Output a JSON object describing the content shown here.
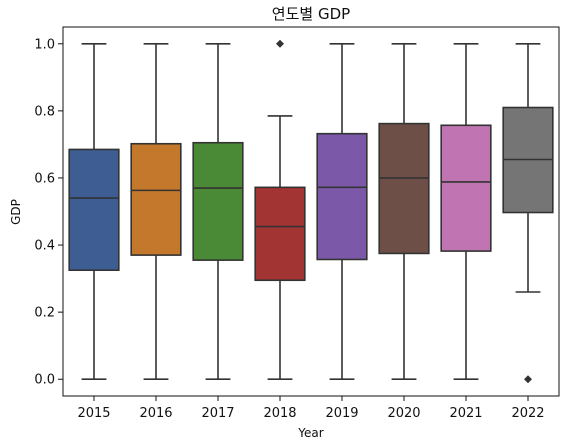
{
  "chart_data": {
    "type": "box",
    "title": "연도별 GDP",
    "xlabel": "Year",
    "ylabel": "GDP",
    "ylim": [
      -0.05,
      1.05
    ],
    "yticks": [
      "0.0",
      "0.2",
      "0.4",
      "0.6",
      "0.8",
      "1.0"
    ],
    "categories": [
      "2015",
      "2016",
      "2017",
      "2018",
      "2019",
      "2020",
      "2021",
      "2022"
    ],
    "colors": [
      "#3e5d92",
      "#c4782c",
      "#4a8a36",
      "#a23434",
      "#7b59a8",
      "#6e4f48",
      "#c074b2",
      "#757575"
    ],
    "boxes": [
      {
        "year": "2015",
        "whislo": 0.0,
        "q1": 0.325,
        "med": 0.54,
        "q3": 0.685,
        "whishi": 1.0,
        "fliers": []
      },
      {
        "year": "2016",
        "whislo": 0.0,
        "q1": 0.37,
        "med": 0.563,
        "q3": 0.702,
        "whishi": 1.0,
        "fliers": []
      },
      {
        "year": "2017",
        "whislo": 0.0,
        "q1": 0.355,
        "med": 0.57,
        "q3": 0.705,
        "whishi": 1.0,
        "fliers": []
      },
      {
        "year": "2018",
        "whislo": 0.0,
        "q1": 0.295,
        "med": 0.455,
        "q3": 0.572,
        "whishi": 0.785,
        "fliers": [
          1.0
        ]
      },
      {
        "year": "2019",
        "whislo": 0.0,
        "q1": 0.357,
        "med": 0.572,
        "q3": 0.732,
        "whishi": 1.0,
        "fliers": []
      },
      {
        "year": "2020",
        "whislo": 0.0,
        "q1": 0.375,
        "med": 0.6,
        "q3": 0.762,
        "whishi": 1.0,
        "fliers": []
      },
      {
        "year": "2021",
        "whislo": 0.0,
        "q1": 0.382,
        "med": 0.588,
        "q3": 0.757,
        "whishi": 1.0,
        "fliers": []
      },
      {
        "year": "2022",
        "whislo": 0.26,
        "q1": 0.497,
        "med": 0.655,
        "q3": 0.81,
        "whishi": 1.0,
        "fliers": [
          0.0
        ]
      }
    ]
  }
}
